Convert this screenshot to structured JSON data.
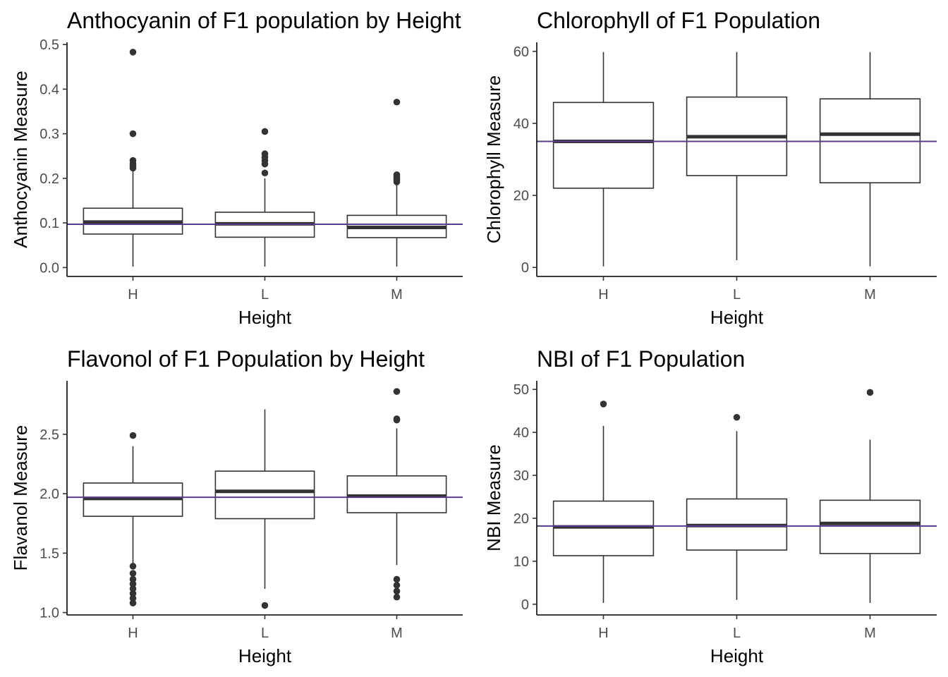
{
  "chart_data": [
    {
      "type": "boxplot",
      "title": "Anthocyanin of F1 population by Height",
      "xlabel": "Height",
      "ylabel": "Anthocyanin Measure",
      "categories": [
        "H",
        "L",
        "M"
      ],
      "ylim": [
        -0.02,
        0.505
      ],
      "yticks": [
        0.0,
        0.1,
        0.2,
        0.3,
        0.4,
        0.5
      ],
      "ytick_labels": [
        "0.0",
        "0.1",
        "0.2",
        "0.3",
        "0.4",
        "0.5"
      ],
      "reference_line": 0.097,
      "reference_color": "#5b3a8c",
      "boxes": [
        {
          "category": "H",
          "min": 0.002,
          "q1": 0.075,
          "median": 0.102,
          "q3": 0.133,
          "max": 0.218,
          "outliers": [
            0.223,
            0.228,
            0.233,
            0.24,
            0.3,
            0.483
          ]
        },
        {
          "category": "L",
          "min": 0.002,
          "q1": 0.068,
          "median": 0.098,
          "q3": 0.124,
          "max": 0.2,
          "outliers": [
            0.212,
            0.232,
            0.24,
            0.247,
            0.255,
            0.305
          ]
        },
        {
          "category": "M",
          "min": 0.002,
          "q1": 0.067,
          "median": 0.09,
          "q3": 0.117,
          "max": 0.188,
          "outliers": [
            0.192,
            0.196,
            0.2,
            0.204,
            0.208,
            0.371
          ]
        }
      ]
    },
    {
      "type": "boxplot",
      "title": "Chlorophyll of F1 Population",
      "xlabel": "Height",
      "ylabel": "Chlorophyll Measure",
      "categories": [
        "H",
        "L",
        "M"
      ],
      "ylim": [
        -2.5,
        62.5
      ],
      "yticks": [
        0,
        20,
        40,
        60
      ],
      "ytick_labels": [
        "0",
        "20",
        "40",
        "60"
      ],
      "reference_line": 35,
      "reference_color": "#5b3a8c",
      "boxes": [
        {
          "category": "H",
          "min": 0.3,
          "q1": 22,
          "median": 35,
          "q3": 45.8,
          "max": 59.8,
          "outliers": []
        },
        {
          "category": "L",
          "min": 2,
          "q1": 25.5,
          "median": 36.3,
          "q3": 47.3,
          "max": 59.8,
          "outliers": []
        },
        {
          "category": "M",
          "min": 0.3,
          "q1": 23.5,
          "median": 37,
          "q3": 46.8,
          "max": 59.8,
          "outliers": []
        }
      ]
    },
    {
      "type": "boxplot",
      "title": "Flavonol of F1 Population by Height",
      "xlabel": "Height",
      "ylabel": "Flavanol Measure",
      "categories": [
        "H",
        "L",
        "M"
      ],
      "ylim": [
        0.98,
        2.95
      ],
      "yticks": [
        1.0,
        1.5,
        2.0,
        2.5
      ],
      "ytick_labels": [
        "1.0",
        "1.5",
        "2.0",
        "2.5"
      ],
      "reference_line": 1.97,
      "reference_color": "#5b3a8c",
      "boxes": [
        {
          "category": "H",
          "min": 1.4,
          "q1": 1.81,
          "median": 1.96,
          "q3": 2.09,
          "max": 2.4,
          "outliers": [
            1.08,
            1.12,
            1.16,
            1.2,
            1.24,
            1.28,
            1.33,
            1.39,
            2.49
          ]
        },
        {
          "category": "L",
          "min": 1.2,
          "q1": 1.79,
          "median": 2.02,
          "q3": 2.19,
          "max": 2.71,
          "outliers": [
            1.06
          ]
        },
        {
          "category": "M",
          "min": 1.4,
          "q1": 1.84,
          "median": 1.98,
          "q3": 2.15,
          "max": 2.55,
          "outliers": [
            1.13,
            1.18,
            1.23,
            1.28,
            2.62,
            2.63,
            2.86
          ]
        }
      ]
    },
    {
      "type": "boxplot",
      "title": "NBI of F1 Population",
      "xlabel": "Height",
      "ylabel": "NBI Measure",
      "categories": [
        "H",
        "L",
        "M"
      ],
      "ylim": [
        -2.5,
        52
      ],
      "yticks": [
        0,
        10,
        20,
        30,
        40,
        50
      ],
      "ytick_labels": [
        "0",
        "10",
        "20",
        "30",
        "40",
        "50"
      ],
      "reference_line": 18.2,
      "reference_color": "#5b3a8c",
      "boxes": [
        {
          "category": "H",
          "min": 0.3,
          "q1": 11.3,
          "median": 18,
          "q3": 24,
          "max": 41.5,
          "outliers": [
            46.6
          ]
        },
        {
          "category": "L",
          "min": 1,
          "q1": 12.6,
          "median": 18.3,
          "q3": 24.5,
          "max": 40.3,
          "outliers": [
            43.5
          ]
        },
        {
          "category": "M",
          "min": 0.3,
          "q1": 11.8,
          "median": 18.8,
          "q3": 24.2,
          "max": 38.3,
          "outliers": [
            49.3
          ]
        }
      ]
    }
  ]
}
